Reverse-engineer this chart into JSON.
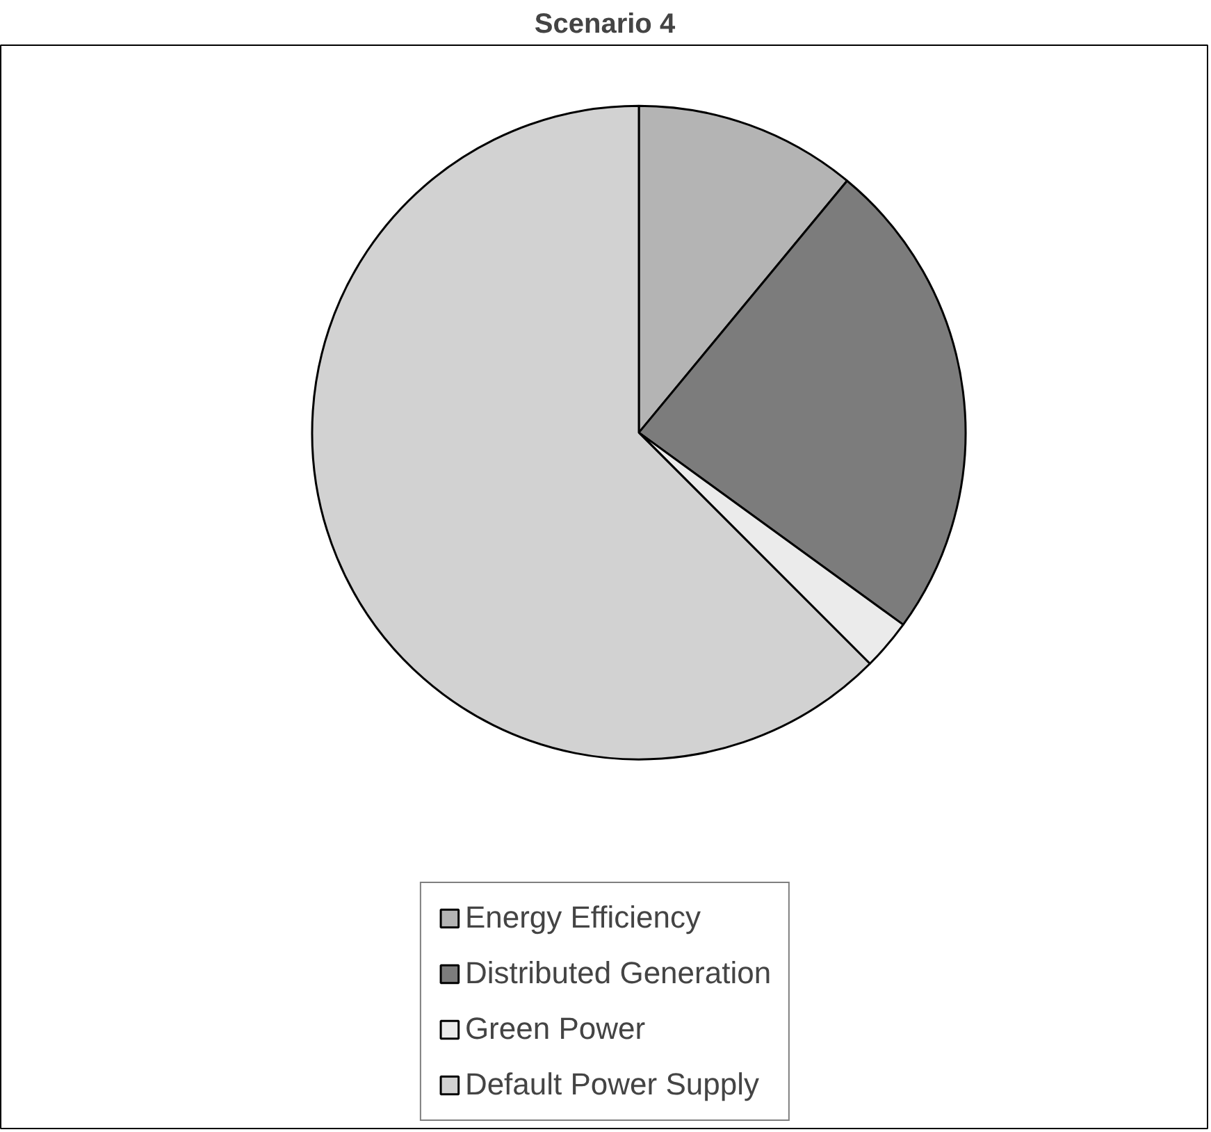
{
  "chart_data": {
    "type": "pie",
    "title": "Scenario 4",
    "categories": [
      "Energy Efficiency",
      "Distributed Generation",
      "Green Power",
      "Default Power Supply"
    ],
    "values": [
      11,
      24,
      2.5,
      62.5
    ],
    "colors": [
      "#b4b4b4",
      "#7c7c7c",
      "#ebebeb",
      "#d2d2d2"
    ],
    "legend": "bottom"
  }
}
